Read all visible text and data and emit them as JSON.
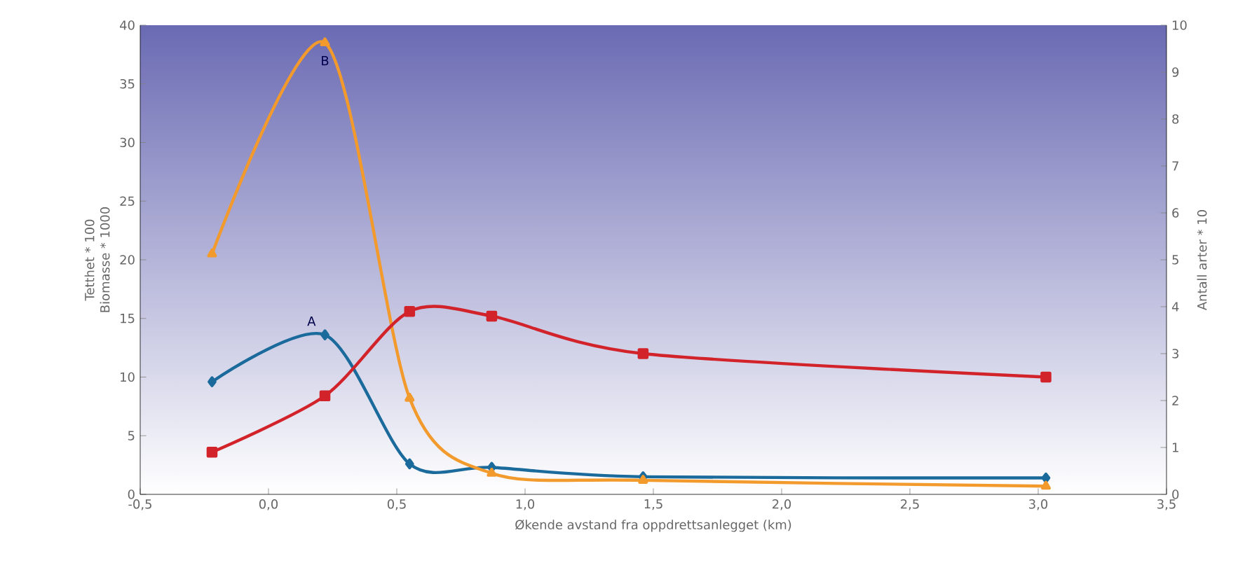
{
  "chart_data": {
    "type": "line",
    "xlabel": "Økende avstand fra oppdrettsanlegget (km)",
    "ylabel": "Tetthet * 100\nBiomasse * 1000",
    "y2label": "Antall arter * 10",
    "x": [
      -0.22,
      0.22,
      0.55,
      0.87,
      1.46,
      3.03
    ],
    "series": [
      {
        "color": "#1b6a9c",
        "marker": "diamond",
        "values": [
          9.6,
          13.6,
          2.6,
          2.3,
          1.5,
          1.4
        ]
      },
      {
        "color": "#f39a2c",
        "marker": "triangle",
        "values": [
          20.5,
          38.5,
          8.2,
          1.8,
          1.2,
          0.7
        ]
      },
      {
        "color": "#d2232a",
        "marker": "square",
        "axis": "y2",
        "values": [
          0.9,
          2.1,
          3.9,
          3.8,
          3.0,
          2.5
        ]
      }
    ],
    "annotations": [
      "A",
      "B"
    ],
    "xlim": [
      -0.5,
      3.5
    ],
    "xticks": [
      {
        "value": -0.5,
        "label": "-0,5"
      },
      {
        "value": 0,
        "label": "0,0"
      },
      {
        "value": 0.5,
        "label": "0,5"
      },
      {
        "value": 1,
        "label": "1,0"
      },
      {
        "value": 1.5,
        "label": "1,5"
      },
      {
        "value": 2,
        "label": "2,0"
      },
      {
        "value": 2.5,
        "label": "2,5"
      },
      {
        "value": 3,
        "label": "3,0"
      },
      {
        "value": 3.5,
        "label": "3,5"
      }
    ],
    "ylim": [
      0,
      40
    ],
    "yticks": [
      0,
      5,
      10,
      15,
      20,
      25,
      30,
      35,
      40
    ],
    "y2lim": [
      0,
      10
    ],
    "y2ticks": [
      0,
      1,
      2,
      3,
      4,
      5,
      6,
      7,
      8,
      9,
      10
    ],
    "line_style": "solid"
  }
}
